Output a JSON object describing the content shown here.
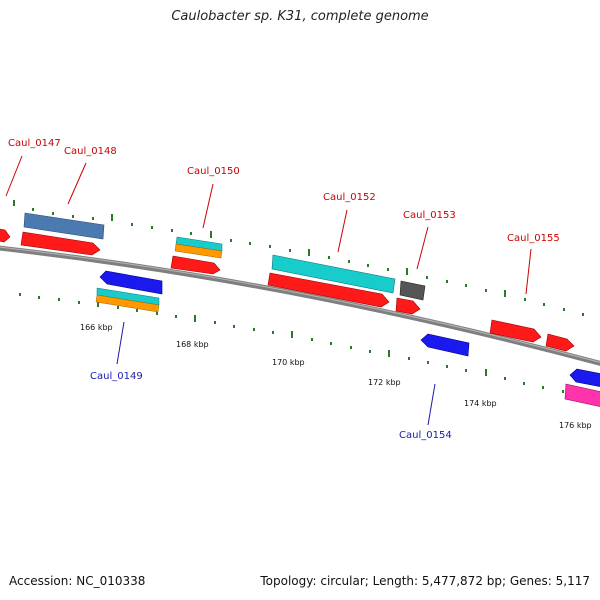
{
  "title": "Caulobacter sp. K31, complete genome",
  "footer": {
    "accession": "Accession: NC_010338",
    "summary": "Topology: circular; Length: 5,477,872 bp; Genes: 5,117"
  },
  "colors": {
    "forward_gene": "#ff1a1a",
    "reverse_gene": "#1a1aee",
    "forward_label": "#cc0000",
    "reverse_label": "#1a1aaa",
    "backbone": "#7f7f7f",
    "ticks": "#2a7a2a",
    "gene_feature_steel": "#4a7ab0",
    "gene_feature_cyan": "#19cccc",
    "gene_feature_orange": "#ff9900",
    "gene_feature_gray": "#555555",
    "gene_feature_pink": "#ff33aa"
  },
  "gene_labels": [
    {
      "id": "Caul_0147",
      "strand": "forward"
    },
    {
      "id": "Caul_0148",
      "strand": "forward"
    },
    {
      "id": "Caul_0149",
      "strand": "reverse"
    },
    {
      "id": "Caul_0150",
      "strand": "forward"
    },
    {
      "id": "Caul_0152",
      "strand": "forward"
    },
    {
      "id": "Caul_0153",
      "strand": "forward"
    },
    {
      "id": "Caul_0154",
      "strand": "reverse"
    },
    {
      "id": "Caul_0155",
      "strand": "forward"
    }
  ],
  "scale_labels": [
    "166 kbp",
    "168 kbp",
    "170 kbp",
    "172 kbp",
    "174 kbp",
    "176 kbp"
  ]
}
